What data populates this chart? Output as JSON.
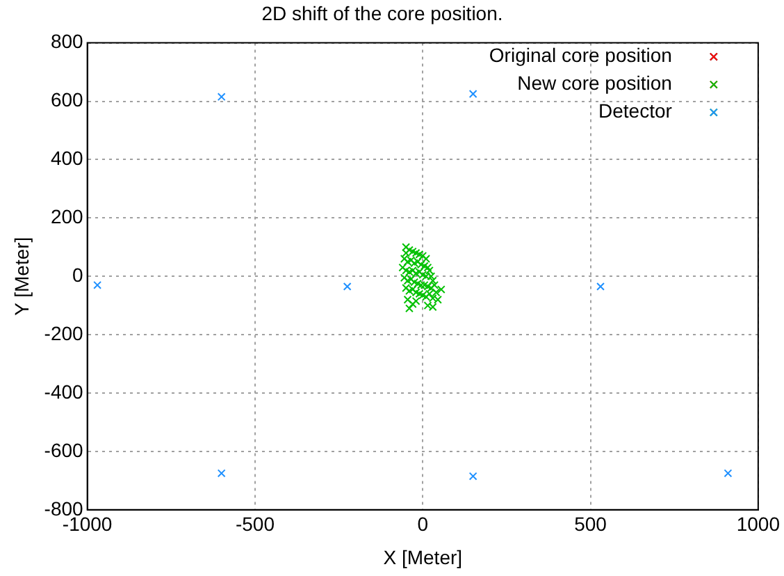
{
  "chart_data": {
    "type": "scatter",
    "title": "2D shift of the core position.",
    "xlabel": "X [Meter]",
    "ylabel": "Y [Meter]",
    "xlim": [
      -1000,
      1000
    ],
    "xticks": [
      -1000,
      -500,
      0,
      500,
      1000
    ],
    "ylim": [
      -800,
      800
    ],
    "yticks": [
      -800,
      -600,
      -400,
      -200,
      0,
      200,
      400,
      600,
      800
    ],
    "grid": true,
    "legend": "top right",
    "series": [
      {
        "name": "Original core position",
        "color": "#ff0000",
        "marker": "cross"
      },
      {
        "name": "New core position",
        "color": "#00c000",
        "marker": "cross",
        "x": [
          -50,
          -40,
          -30,
          -20,
          -10,
          0,
          10,
          -55,
          -45,
          -35,
          -25,
          -15,
          -5,
          5,
          15,
          20,
          -60,
          -50,
          -40,
          -30,
          -20,
          -10,
          0,
          10,
          25,
          30,
          -55,
          -45,
          -35,
          -25,
          -15,
          -5,
          5,
          15,
          25,
          35,
          40,
          -50,
          -40,
          -30,
          -20,
          -10,
          0,
          10,
          20,
          30,
          -45,
          -40,
          -30,
          -20,
          15,
          30,
          45,
          -50,
          55
        ],
        "values": [
          80,
          90,
          85,
          80,
          75,
          70,
          60,
          60,
          50,
          55,
          45,
          50,
          40,
          35,
          30,
          20,
          30,
          20,
          15,
          20,
          10,
          15,
          5,
          0,
          0,
          -15,
          -5,
          -15,
          -10,
          -20,
          -25,
          -30,
          -30,
          -35,
          -40,
          -30,
          -55,
          -40,
          -50,
          -45,
          -55,
          -60,
          -65,
          -70,
          -60,
          -75,
          -80,
          -110,
          -95,
          -85,
          -100,
          -105,
          -80,
          100,
          -45
        ]
      },
      {
        "name": "Detector",
        "color": "#1e90ff",
        "marker": "cross",
        "x": [
          -600,
          150,
          -970,
          -225,
          530,
          -600,
          150,
          910
        ],
        "values": [
          615,
          625,
          -30,
          -35,
          -35,
          -675,
          -685,
          -675
        ]
      }
    ]
  }
}
